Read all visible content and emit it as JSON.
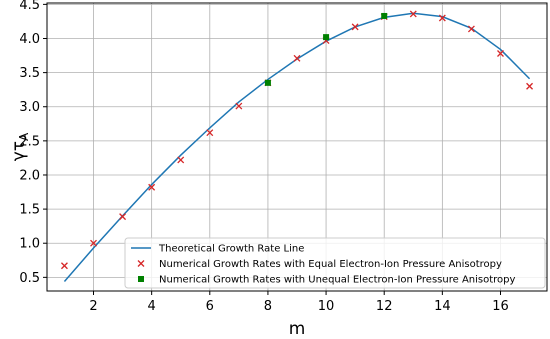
{
  "chart_data": {
    "type": "line",
    "xlabel": "m",
    "ylabel": "γτ",
    "ylabel_subscript": "A",
    "xlim": [
      0.4,
      17.6
    ],
    "ylim": [
      0.3,
      4.52
    ],
    "x_ticks": [
      2,
      4,
      6,
      8,
      10,
      12,
      14,
      16
    ],
    "y_ticks": [
      0.5,
      1.0,
      1.5,
      2.0,
      2.5,
      3.0,
      3.5,
      4.0,
      4.5
    ],
    "x_tick_labels": [
      "2",
      "4",
      "6",
      "8",
      "10",
      "12",
      "14",
      "16"
    ],
    "y_tick_labels": [
      "0.5",
      "1.0",
      "1.5",
      "2.0",
      "2.5",
      "3.0",
      "3.5",
      "4.0",
      "4.5"
    ],
    "grid": true,
    "legend_position": "lower-right",
    "series": [
      {
        "name": "Theoretical Growth Rate Line",
        "kind": "line",
        "color": "#1f77b4",
        "x": [
          1,
          2,
          3,
          4,
          5,
          6,
          7,
          8,
          9,
          10,
          11,
          12,
          13,
          14,
          15,
          16,
          17
        ],
        "y": [
          0.44,
          0.93,
          1.4,
          1.86,
          2.29,
          2.69,
          3.07,
          3.4,
          3.7,
          3.96,
          4.17,
          4.31,
          4.37,
          4.32,
          4.15,
          3.84,
          3.41
        ]
      },
      {
        "name": "Numerical Growth Rates with Equal Electron-Ion Pressure Anisotropy",
        "kind": "marker-x",
        "color": "#d62728",
        "x": [
          1,
          2,
          3,
          4,
          5,
          6,
          7,
          8,
          9,
          10,
          11,
          12,
          13,
          14,
          15,
          16,
          17
        ],
        "y": [
          0.67,
          1.0,
          1.39,
          1.82,
          2.22,
          2.62,
          3.01,
          3.35,
          3.71,
          3.97,
          4.17,
          4.32,
          4.36,
          4.3,
          4.14,
          3.78,
          3.3
        ]
      },
      {
        "name": "Numerical Growth Rates with Unequal Electron-Ion Pressure Anisotropy",
        "kind": "marker-square",
        "color": "#008000",
        "x": [
          8,
          10,
          12
        ],
        "y": [
          3.35,
          4.02,
          4.33
        ]
      }
    ]
  }
}
